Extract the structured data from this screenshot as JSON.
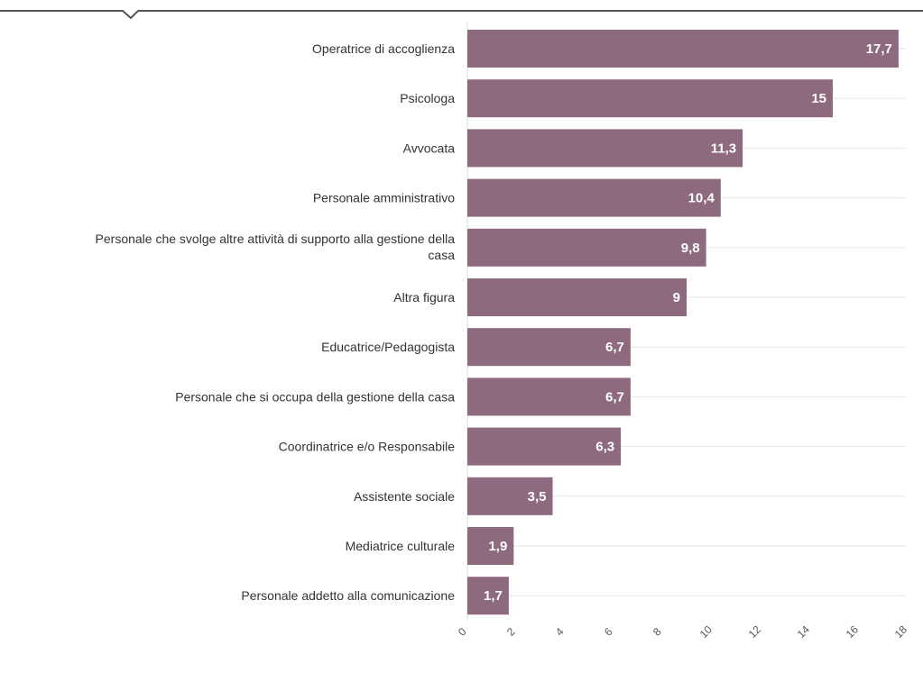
{
  "colors": {
    "bar": "#8e6a7f",
    "grid": "#e6e6e6",
    "top_rule": "#555555"
  },
  "chart_data": {
    "type": "bar",
    "orientation": "horizontal",
    "categories": [
      "Operatrice di accoglienza",
      "Psicologa",
      "Avvocata",
      "Personale amministrativo",
      "Personale che svolge altre attività di supporto alla gestione della casa",
      "Altra figura",
      "Educatrice/Pedagogista",
      "Personale che si occupa della gestione della casa",
      "Coordinatrice e/o Responsabile",
      "Assistente sociale",
      "Mediatrice culturale",
      "Personale addetto alla comunicazione"
    ],
    "category_lines": [
      [
        "Operatrice di accoglienza"
      ],
      [
        "Psicologa"
      ],
      [
        "Avvocata"
      ],
      [
        "Personale amministrativo"
      ],
      [
        "Personale che svolge altre attività di supporto alla gestione della",
        "casa"
      ],
      [
        "Altra figura"
      ],
      [
        "Educatrice/Pedagogista"
      ],
      [
        "Personale che si occupa della gestione della casa"
      ],
      [
        "Coordinatrice e/o Responsabile"
      ],
      [
        "Assistente sociale"
      ],
      [
        "Mediatrice culturale"
      ],
      [
        "Personale addetto alla comunicazione"
      ]
    ],
    "values": [
      17.7,
      15,
      11.3,
      10.4,
      9.8,
      9,
      6.7,
      6.7,
      6.3,
      3.5,
      1.9,
      1.7
    ],
    "value_labels": [
      "17,7",
      "15",
      "11,3",
      "10,4",
      "9,8",
      "9",
      "6,7",
      "6,7",
      "6,3",
      "3,5",
      "1,9",
      "1,7"
    ],
    "xticks": [
      0,
      2,
      4,
      6,
      8,
      10,
      12,
      14,
      16,
      18
    ],
    "xlim": [
      0,
      18
    ],
    "title": "",
    "xlabel": "",
    "ylabel": "",
    "grid": true,
    "legend": "none"
  }
}
